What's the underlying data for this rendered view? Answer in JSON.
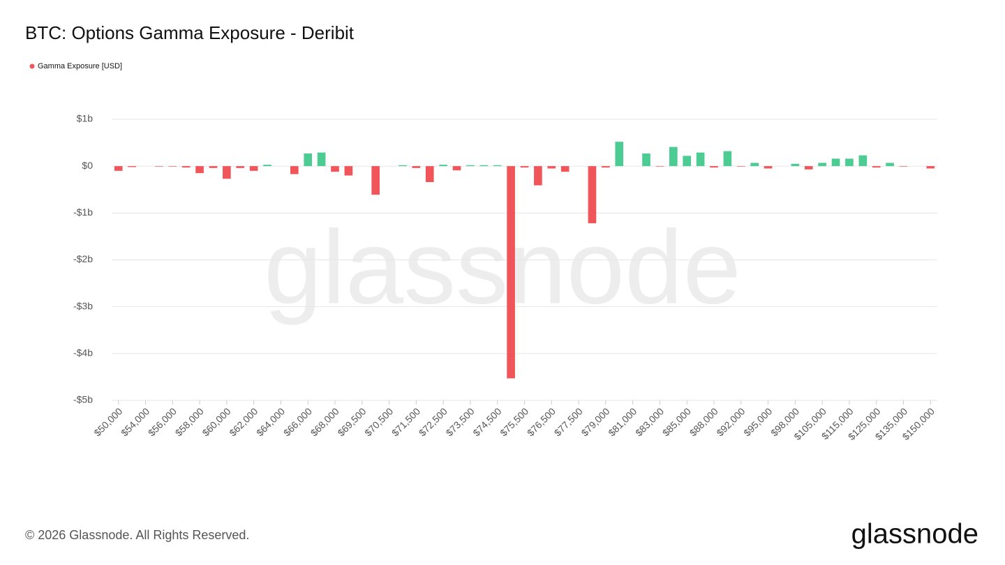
{
  "chart_data": {
    "type": "bar",
    "title": "BTC: Options Gamma Exposure - Deribit",
    "series": [
      {
        "name": "Gamma Exposure [USD]",
        "color": "#f0555a",
        "positive_color": "#4ccb93",
        "values": [
          -0.1,
          -0.02,
          0,
          -0.01,
          -0.01,
          -0.03,
          -0.15,
          -0.04,
          -0.27,
          -0.04,
          -0.1,
          0.03,
          0,
          -0.17,
          0.27,
          0.29,
          -0.12,
          -0.2,
          0,
          -0.61,
          0,
          0.02,
          -0.04,
          -0.34,
          0.03,
          -0.09,
          0.02,
          0.02,
          0.02,
          -4.53,
          -0.03,
          -0.41,
          -0.05,
          -0.12,
          0,
          -1.22,
          -0.03,
          0.52,
          0,
          0.27,
          -0.01,
          0.41,
          0.22,
          0.29,
          -0.03,
          0.32,
          -0.01,
          0.07,
          -0.05,
          0,
          0.05,
          -0.07,
          0.07,
          0.16,
          0.16,
          0.23,
          -0.03,
          0.07,
          -0.01,
          0,
          -0.05
        ]
      }
    ],
    "categories": [
      "$50,000",
      null,
      "$54,000",
      null,
      "$56,000",
      null,
      "$58,000",
      null,
      "$60,000",
      null,
      "$62,000",
      null,
      "$64,000",
      null,
      "$66,000",
      null,
      "$68,000",
      null,
      "$69,500",
      null,
      "$70,500",
      null,
      "$71,500",
      null,
      "$72,500",
      null,
      "$73,500",
      null,
      "$74,500",
      null,
      "$75,500",
      null,
      "$76,500",
      null,
      "$77,500",
      null,
      "$79,000",
      null,
      "$81,000",
      null,
      "$83,000",
      null,
      "$85,000",
      null,
      "$88,000",
      null,
      "$92,000",
      null,
      "$95,000",
      null,
      "$98,000",
      null,
      "$105,000",
      null,
      "$115,000",
      null,
      "$125,000",
      null,
      "$135,000",
      null,
      "$150,000"
    ],
    "ylim": [
      -5,
      1
    ],
    "yticks": [
      {
        "value": 1,
        "label": "$1b"
      },
      {
        "value": 0,
        "label": "$0"
      },
      {
        "value": -1,
        "label": "-$1b"
      },
      {
        "value": -2,
        "label": "-$2b"
      },
      {
        "value": -3,
        "label": "-$3b"
      },
      {
        "value": -4,
        "label": "-$4b"
      },
      {
        "value": -5,
        "label": "-$5b"
      }
    ],
    "grid": true,
    "legend": "top-left",
    "watermark": "glassnode",
    "footer": "© 2026 Glassnode. All Rights Reserved.",
    "logo": "glassnode"
  }
}
